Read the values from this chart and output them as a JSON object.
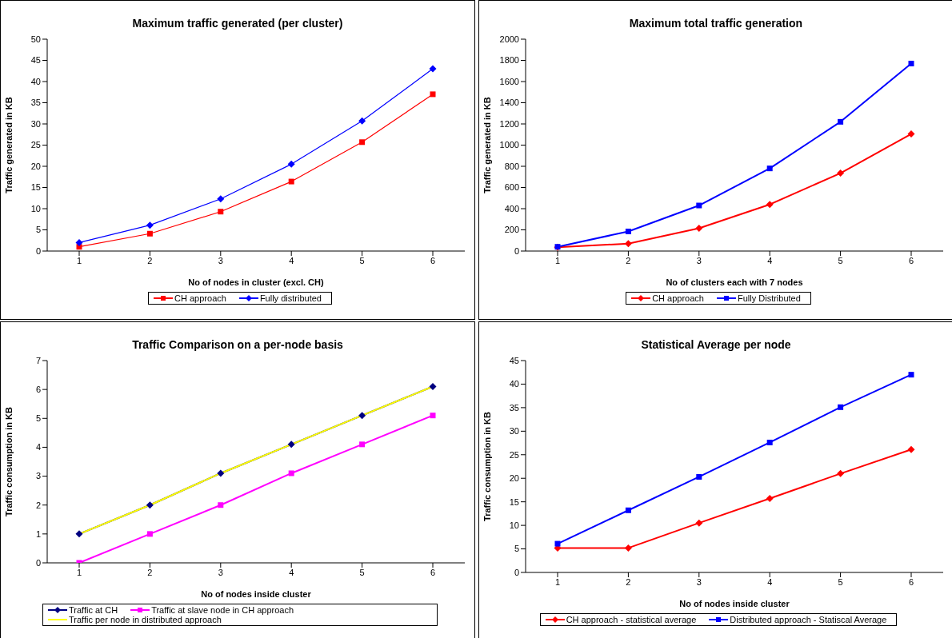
{
  "chart_data": [
    {
      "type": "line",
      "title": "Maximum traffic generated (per cluster)",
      "xlabel": "No of nodes in cluster (excl. CH)",
      "ylabel": "Traffic generated in KB",
      "categories": [
        "1",
        "2",
        "3",
        "4",
        "5",
        "6"
      ],
      "ylim": [
        0,
        50
      ],
      "yticks": [
        0,
        5,
        10,
        15,
        20,
        25,
        30,
        35,
        40,
        45,
        50
      ],
      "grid": false,
      "legend": "bottom",
      "line_style": "solid",
      "series": [
        {
          "name": "CH approach",
          "color": "#ff0000",
          "marker": "square",
          "values": [
            1,
            4.1,
            9.3,
            16.4,
            25.7,
            37
          ]
        },
        {
          "name": "Fully distributed",
          "color": "#0000ff",
          "marker": "diamond",
          "values": [
            2,
            6.1,
            12.3,
            20.5,
            30.7,
            43
          ]
        }
      ]
    },
    {
      "type": "line",
      "title": "Maximum total traffic generation",
      "xlabel": "No of clusters each with 7 nodes",
      "ylabel": "Traffic generated in KB",
      "categories": [
        "1",
        "2",
        "3",
        "4",
        "5",
        "6"
      ],
      "ylim": [
        0,
        2000
      ],
      "yticks": [
        0,
        200,
        400,
        600,
        800,
        1000,
        1200,
        1400,
        1600,
        1800,
        2000
      ],
      "grid": false,
      "legend": "bottom",
      "line_style": "solid",
      "series": [
        {
          "name": "CH approach",
          "color": "#ff0000",
          "marker": "diamond",
          "values": [
            35,
            70,
            215,
            440,
            735,
            1105
          ]
        },
        {
          "name": "Fully Distributed",
          "color": "#0000ff",
          "marker": "square",
          "values": [
            40,
            185,
            430,
            780,
            1220,
            1770
          ]
        }
      ]
    },
    {
      "type": "line",
      "title": "Traffic Comparison on a per-node basis",
      "xlabel": "No of nodes inside cluster",
      "ylabel": "Traffic consumption in KB",
      "categories": [
        "1",
        "2",
        "3",
        "4",
        "5",
        "6"
      ],
      "ylim": [
        0,
        7
      ],
      "yticks": [
        0,
        1,
        2,
        3,
        4,
        5,
        6,
        7
      ],
      "grid": false,
      "legend": "bottom",
      "line_style": "solid",
      "series": [
        {
          "name": "Traffic at CH",
          "color": "#000080",
          "marker": "diamond",
          "values": [
            1,
            2,
            3.1,
            4.1,
            5.1,
            6.1
          ]
        },
        {
          "name": "Traffic at slave node in CH approach",
          "color": "#ff00ff",
          "marker": "square",
          "values": [
            0,
            1,
            2,
            3.1,
            4.1,
            5.1
          ]
        },
        {
          "name": "Traffic per node in distributed approach",
          "color": "#ffff00",
          "values": [
            1,
            2,
            3.1,
            4.1,
            5.1,
            6.1
          ]
        }
      ]
    },
    {
      "type": "line",
      "title": "Statistical Average per node",
      "xlabel": "No of nodes inside cluster",
      "ylabel": "Traffic consumption in KB",
      "categories": [
        "1",
        "2",
        "3",
        "4",
        "5",
        "6"
      ],
      "ylim": [
        0,
        45
      ],
      "yticks": [
        0,
        5,
        10,
        15,
        20,
        25,
        30,
        35,
        40,
        45
      ],
      "grid": false,
      "legend": "bottom",
      "line_style": "solid",
      "series": [
        {
          "name": "CH approach - statistical average",
          "color": "#ff0000",
          "marker": "diamond",
          "values": [
            5.2,
            5.2,
            10.5,
            15.7,
            21,
            26.1
          ]
        },
        {
          "name": "Distributed approach - Statiscal Average",
          "color": "#0000ff",
          "marker": "square",
          "values": [
            6.1,
            13.2,
            20.3,
            27.6,
            35.1,
            42
          ]
        }
      ]
    }
  ]
}
